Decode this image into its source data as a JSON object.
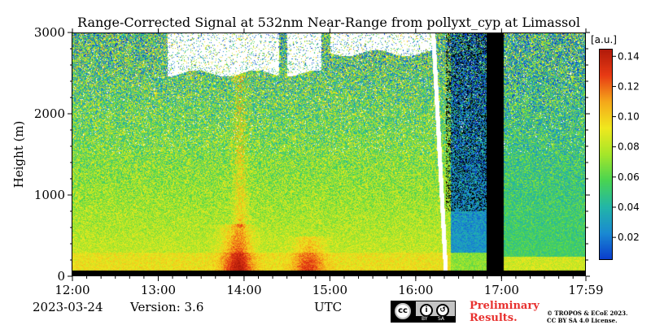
{
  "chart_data": {
    "type": "heatmap",
    "title": "Range-Corrected Signal at 532nm Near-Range from pollyxt_cyp at Limassol",
    "xlabel": "UTC",
    "ylabel": "Height (m)",
    "x_ticks": [
      "12:00",
      "13:00",
      "14:00",
      "15:00",
      "16:00",
      "17:00",
      "17:59"
    ],
    "x_tick_hours": [
      12.0,
      13.0,
      14.0,
      15.0,
      16.0,
      17.0,
      17.983
    ],
    "xlim": [
      12.0,
      17.983
    ],
    "y_ticks": [
      0,
      1000,
      2000,
      3000
    ],
    "ylim": [
      0,
      3000
    ],
    "colorbar": {
      "unit": "[a.u.]",
      "ticks": [
        0.02,
        0.04,
        0.06,
        0.08,
        0.1,
        0.12,
        0.14
      ],
      "tick_labels": [
        "0.02",
        "0.04",
        "0.06",
        "0.08",
        "0.10",
        "0.12",
        "0.14"
      ],
      "range": [
        0.005,
        0.145
      ],
      "colormap": [
        "#0a3ccc",
        "#1a8ad2",
        "#22b6a8",
        "#49d452",
        "#a6e62a",
        "#f0e81e",
        "#f5a81a",
        "#e83a14",
        "#b01a0a"
      ]
    },
    "features": {
      "data_gap": {
        "start_hour": 16.82,
        "end_hour": 17.02,
        "color": "#000000"
      },
      "surface_layer": {
        "max_height": 80,
        "color": "#000000"
      },
      "cloud_base_height": 2500,
      "aerosol_peaks": [
        {
          "center_hour": 13.92,
          "top_height": 650,
          "value": 0.12
        },
        {
          "center_hour": 14.75,
          "top_height": 500,
          "value": 0.11
        }
      ],
      "rain_streak_hour": 16.35
    }
  },
  "footer": {
    "date": "2023-03-24",
    "version": "Version: 3.6",
    "axis_unit": "UTC",
    "preliminary_line1": "Preliminary",
    "preliminary_line2": "Results.",
    "copyright_line1": "© TROPOS & ECoE 2023.",
    "copyright_line2": "CC BY SA 4.0 License.",
    "license_badge": {
      "cc": "cc",
      "by": "BY",
      "sa": "SA"
    }
  }
}
